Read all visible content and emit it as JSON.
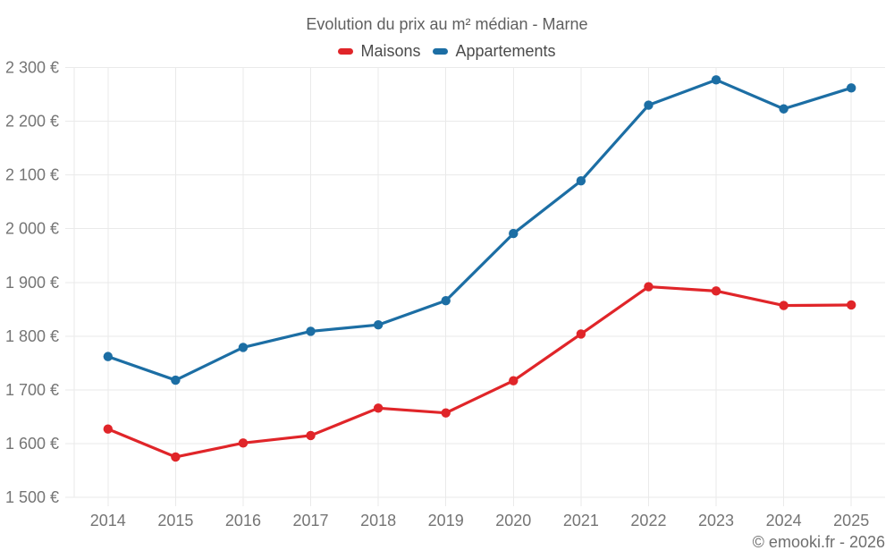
{
  "header": {
    "title": "Evolution du prix au m² médian - Marne"
  },
  "footer": {
    "copyright": "© emooki.fr - 2026"
  },
  "chart_data": {
    "type": "line",
    "title": "Evolution du prix au m² médian - Marne",
    "xlabel": "",
    "ylabel": "",
    "categories": [
      "2014",
      "2015",
      "2016",
      "2017",
      "2018",
      "2019",
      "2020",
      "2021",
      "2022",
      "2023",
      "2024",
      "2025"
    ],
    "series": [
      {
        "name": "Maisons",
        "color": "#e02529",
        "values": [
          1627,
          1575,
          1601,
          1615,
          1666,
          1657,
          1717,
          1804,
          1892,
          1884,
          1857,
          1858
        ]
      },
      {
        "name": "Appartements",
        "color": "#1c6ea4",
        "values": [
          1762,
          1718,
          1779,
          1809,
          1821,
          1866,
          1991,
          2089,
          2230,
          2277,
          2223,
          2262
        ]
      }
    ],
    "ylim": [
      1500,
      2300
    ],
    "y_tick_values": [
      1500,
      1600,
      1700,
      1800,
      1900,
      2000,
      2100,
      2200,
      2300
    ],
    "y_tick_labels": [
      "1 500 €",
      "1 600 €",
      "1 700 €",
      "1 800 €",
      "1 900 €",
      "2 000 €",
      "2 100 €",
      "2 200 €",
      "2 300 €"
    ],
    "grid": true,
    "grid_color": "#eaeaea",
    "tick_label_color": "#757575",
    "legend_position": "top"
  }
}
